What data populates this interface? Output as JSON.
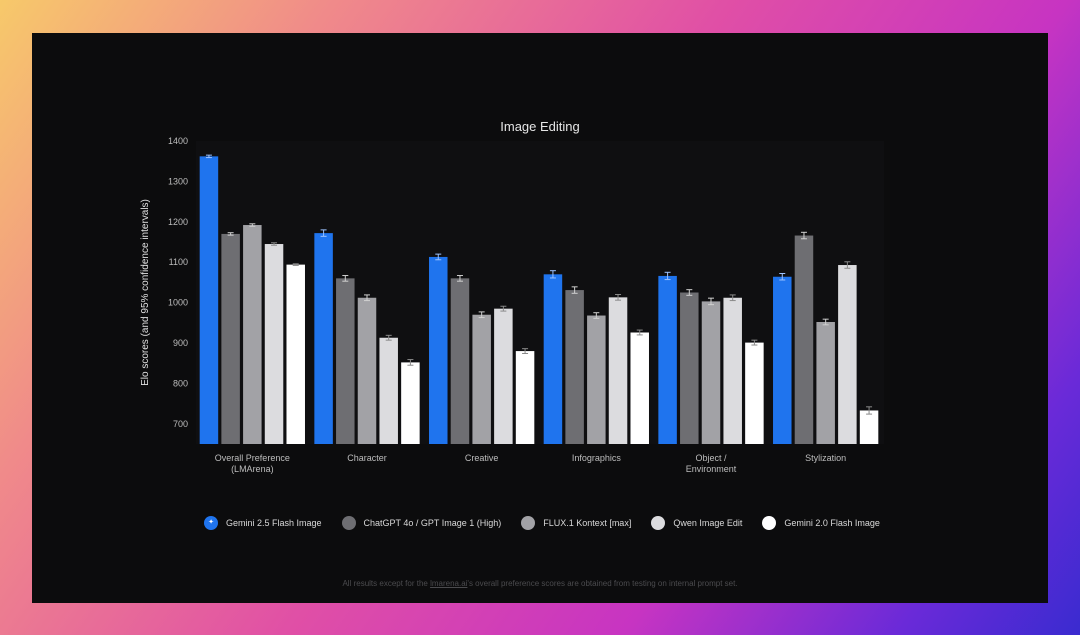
{
  "footnote": {
    "prefix": "All results except for the ",
    "link": "lmarena.ai",
    "suffix": "'s overall preference scores are obtained from testing on internal prompt set."
  },
  "colors": [
    "#1f74ee",
    "#6e6e72",
    "#a2a2a6",
    "#dcdcdf",
    "#ffffff"
  ],
  "legend_icon": "sparkle-icon",
  "chart_data": {
    "type": "bar",
    "title": "Image Editing",
    "xlabel": "",
    "ylabel": "Elo scores (and 95% confidence intervals)",
    "ylim": [
      650,
      1400
    ],
    "yticks": [
      700,
      800,
      900,
      1000,
      1100,
      1200,
      1300,
      1400
    ],
    "grid": false,
    "legend_position": "bottom",
    "categories": [
      [
        "Overall Preference",
        "(LMArena)"
      ],
      [
        "Character"
      ],
      [
        "Creative"
      ],
      [
        "Infographics"
      ],
      [
        "Object /",
        "Environment"
      ],
      [
        "Stylization"
      ]
    ],
    "series": [
      {
        "name": "Gemini 2.5 Flash Image",
        "values": [
          1362,
          1172,
          1113,
          1070,
          1066,
          1064
        ],
        "ci": [
          3,
          8,
          7,
          9,
          9,
          8
        ]
      },
      {
        "name": "ChatGPT 4o / GPT Image 1 (High)",
        "values": [
          1170,
          1060,
          1060,
          1031,
          1025,
          1166
        ],
        "ci": [
          3,
          7,
          7,
          8,
          7,
          8
        ]
      },
      {
        "name": "FLUX.1 Kontext [max]",
        "values": [
          1192,
          1012,
          970,
          968,
          1003,
          952
        ],
        "ci": [
          3,
          7,
          7,
          7,
          8,
          7
        ]
      },
      {
        "name": "Qwen Image Edit",
        "values": [
          1145,
          913,
          985,
          1013,
          1012,
          1093
        ],
        "ci": [
          3,
          6,
          6,
          7,
          7,
          8
        ]
      },
      {
        "name": "Gemini 2.0 Flash Image",
        "values": [
          1094,
          852,
          880,
          926,
          901,
          733
        ],
        "ci": [
          2,
          7,
          6,
          6,
          6,
          9
        ]
      }
    ]
  }
}
